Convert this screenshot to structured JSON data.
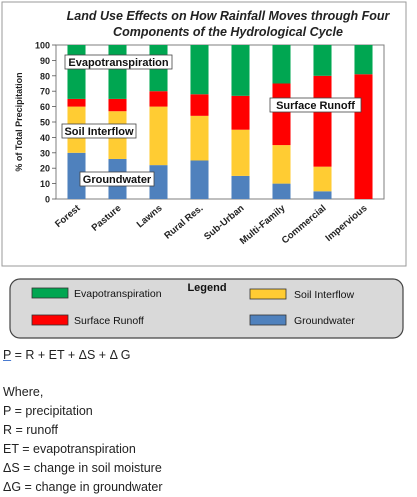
{
  "chart_data": {
    "type": "bar",
    "stacked": true,
    "title_lines": [
      "Land Use Effects on How Rainfall Moves through Four",
      "Components of the Hydrological Cycle"
    ],
    "ylabel": "% of Total Precipitation",
    "xlabel": "",
    "ylim": [
      0,
      100
    ],
    "yticks": [
      0,
      10,
      20,
      30,
      40,
      50,
      60,
      70,
      80,
      90,
      100
    ],
    "grid": false,
    "categories": [
      "Forest",
      "Pasture",
      "Lawns",
      "Rural Res.",
      "Sub-Urban",
      "Multi-Family",
      "Commercial",
      "Impervious"
    ],
    "series": [
      {
        "name": "Groundwater",
        "color": "#4f81bd",
        "values": [
          30,
          26,
          22,
          25,
          15,
          10,
          5,
          0
        ]
      },
      {
        "name": "Soil Interflow",
        "color": "#ffcc33",
        "values": [
          30,
          31,
          38,
          29,
          30,
          25,
          16,
          0
        ]
      },
      {
        "name": "Surface Runoff",
        "color": "#ff0000",
        "values": [
          5,
          8,
          10,
          14,
          22,
          40,
          59,
          81
        ]
      },
      {
        "name": "Evapotranspiration",
        "color": "#00a651",
        "values": [
          35,
          35,
          30,
          32,
          33,
          25,
          20,
          19
        ]
      }
    ],
    "annotations": [
      "Evapotranspiration",
      "Soil Interflow",
      "Groundwater",
      "Surface Runoff"
    ],
    "legend": {
      "title": "Legend",
      "placement": "bottom",
      "items": [
        "Evapotranspiration",
        "Soil Interflow",
        "Surface Runoff",
        "Groundwater"
      ]
    }
  },
  "equation": {
    "p": "P",
    "rest": " =  R  +  ET  +  ΔS  + Δ G"
  },
  "notes": {
    "where": "Where,",
    "definitions": [
      "P = precipitation",
      "R = runoff",
      "ET = evapotranspiration",
      "ΔS  = change in soil moisture",
      "ΔG = change in groundwater"
    ]
  }
}
